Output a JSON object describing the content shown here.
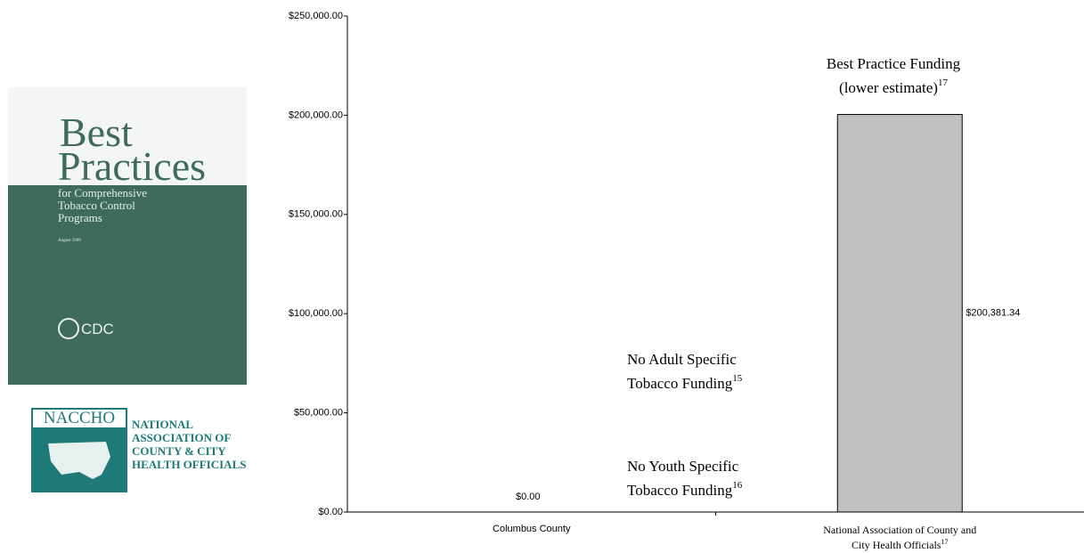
{
  "chart_data": {
    "type": "bar",
    "categories": [
      "Columbus County",
      "National Association of County and City Health Officials"
    ],
    "category_notes": {
      "1": "17"
    },
    "values": [
      0,
      200381.34
    ],
    "value_labels": [
      "$0.00",
      "$200,381.34"
    ],
    "color": "#c0c0c0",
    "ylim": [
      0,
      250000
    ],
    "yticks": [
      {
        "value": 0,
        "label": "$0.00"
      },
      {
        "value": 50000,
        "label": "$50,000.00"
      },
      {
        "value": 100000,
        "label": "$100,000.00"
      },
      {
        "value": 150000,
        "label": "$150,000.00"
      },
      {
        "value": 200000,
        "label": "$200,000.00"
      },
      {
        "value": 250000,
        "label": "$250,000.00"
      }
    ],
    "grid": false,
    "annotations": [
      {
        "lines": [
          "Best Practice Funding",
          "(lower estimate)"
        ],
        "note": "17"
      },
      {
        "lines": [
          "No Adult Specific",
          "Tobacco Funding"
        ],
        "note": "15"
      },
      {
        "lines": [
          "No Youth Specific",
          "Tobacco Funding"
        ],
        "note": "16"
      }
    ]
  },
  "cover": {
    "title1": "Best",
    "title2": "Practices",
    "subtitle": [
      "for Comprehensive",
      "Tobacco Control",
      "Programs"
    ],
    "date": "August 1999",
    "agency": "CDC"
  },
  "naccho": {
    "abbr": "NACCHO",
    "lines": [
      "NATIONAL",
      "ASSOCIATION OF",
      "COUNTY & CITY",
      "HEALTH OFFICIALS"
    ]
  }
}
